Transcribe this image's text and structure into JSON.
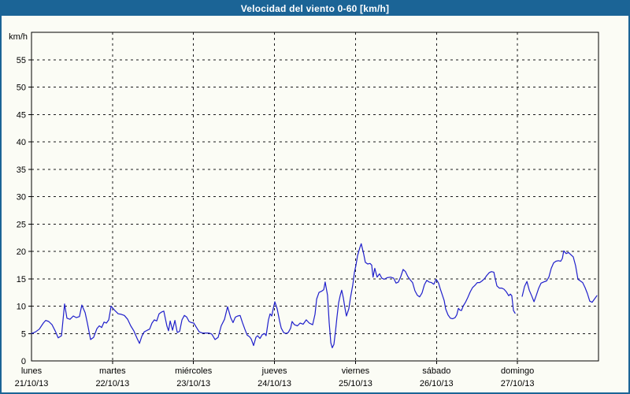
{
  "window": {
    "title": "Velocidad del viento 0-60 [km/h]"
  },
  "colors": {
    "header_bg": "#1b6496",
    "page_border": "#1b6496",
    "page_background": "#fbfcf5",
    "line": "#1f1fcb",
    "grid": "#1a1a1a",
    "axis": "#000000",
    "text": "#000000",
    "title_text": "#ffffff"
  },
  "chart_data": {
    "type": "line",
    "title": "Velocidad del viento 0-60 [km/h]",
    "ylabel": "km/h",
    "xlabel": "",
    "ylim": [
      0,
      60
    ],
    "xlim_hours": [
      0,
      168
    ],
    "grid": "dashed",
    "legend_position": "none",
    "y_axis": {
      "unit": "km/h",
      "tick_step": 5,
      "tick_labels": [
        0,
        5,
        10,
        15,
        20,
        25,
        30,
        35,
        40,
        45,
        50,
        55
      ]
    },
    "x_axis": {
      "hours_total": 168,
      "day_span_hours": 24,
      "days": [
        {
          "name": "lunes",
          "date": "21/10/13"
        },
        {
          "name": "martes",
          "date": "22/10/13"
        },
        {
          "name": "miércoles",
          "date": "23/10/13"
        },
        {
          "name": "jueves",
          "date": "24/10/13"
        },
        {
          "name": "viernes",
          "date": "25/10/13"
        },
        {
          "name": "sábado",
          "date": "26/10/13"
        },
        {
          "name": "domingo",
          "date": "27/10/13"
        }
      ]
    },
    "series": [
      {
        "name": "Velocidad del viento",
        "color": "#1f1fcb",
        "units": "km/h",
        "note": "x = hours since lunes 21/10/13 00:00; gap in data late Saturday night",
        "segments": [
          [
            [
              0,
              5.0
            ],
            [
              1.2,
              5.3
            ],
            [
              2.3,
              5.8
            ],
            [
              3.5,
              6.9
            ],
            [
              4.2,
              7.4
            ],
            [
              5.1,
              7.2
            ],
            [
              6.1,
              6.6
            ],
            [
              7.0,
              5.5
            ],
            [
              7.9,
              4.2
            ],
            [
              8.9,
              4.6
            ],
            [
              9.8,
              10.4
            ],
            [
              10.5,
              7.8
            ],
            [
              11.4,
              7.6
            ],
            [
              12.4,
              8.2
            ],
            [
              13.3,
              7.9
            ],
            [
              14.2,
              8.1
            ],
            [
              14.9,
              10.2
            ],
            [
              15.9,
              8.8
            ],
            [
              16.6,
              6.8
            ],
            [
              17.5,
              3.9
            ],
            [
              18.4,
              4.3
            ],
            [
              19.4,
              5.9
            ],
            [
              20.1,
              6.4
            ],
            [
              20.8,
              6.1
            ],
            [
              21.5,
              7.1
            ],
            [
              22.2,
              6.9
            ],
            [
              22.9,
              7.5
            ],
            [
              23.6,
              10.0
            ],
            [
              24.7,
              9.2
            ],
            [
              25.7,
              8.6
            ],
            [
              26.6,
              8.5
            ],
            [
              27.5,
              8.3
            ],
            [
              28.5,
              7.6
            ],
            [
              29.4,
              6.4
            ],
            [
              30.3,
              5.5
            ],
            [
              31.3,
              4.1
            ],
            [
              32.0,
              3.2
            ],
            [
              32.7,
              4.5
            ],
            [
              33.4,
              5.3
            ],
            [
              34.3,
              5.6
            ],
            [
              35.0,
              5.8
            ],
            [
              35.7,
              6.9
            ],
            [
              36.4,
              7.5
            ],
            [
              37.1,
              7.3
            ],
            [
              37.8,
              8.6
            ],
            [
              38.5,
              8.9
            ],
            [
              39.2,
              9.1
            ],
            [
              40.1,
              6.4
            ],
            [
              40.6,
              5.5
            ],
            [
              41.1,
              7.3
            ],
            [
              41.8,
              5.6
            ],
            [
              42.5,
              7.4
            ],
            [
              43.2,
              5.2
            ],
            [
              43.9,
              5.4
            ],
            [
              44.6,
              7.5
            ],
            [
              45.3,
              8.3
            ],
            [
              46.0,
              8.0
            ],
            [
              46.7,
              7.2
            ],
            [
              47.4,
              7.0
            ],
            [
              48.1,
              6.9
            ],
            [
              48.8,
              6.2
            ],
            [
              49.7,
              5.3
            ],
            [
              50.6,
              5.1
            ],
            [
              51.6,
              5.1
            ],
            [
              52.5,
              5.1
            ],
            [
              53.4,
              4.9
            ],
            [
              54.4,
              3.9
            ],
            [
              55.3,
              4.3
            ],
            [
              56.2,
              6.4
            ],
            [
              57.2,
              7.6
            ],
            [
              58.1,
              9.9
            ],
            [
              59.0,
              7.9
            ],
            [
              59.7,
              7.0
            ],
            [
              60.4,
              8.0
            ],
            [
              61.1,
              8.2
            ],
            [
              61.8,
              8.3
            ],
            [
              62.5,
              7.0
            ],
            [
              63.2,
              5.8
            ],
            [
              63.9,
              4.7
            ],
            [
              64.6,
              4.4
            ],
            [
              65.1,
              4.0
            ],
            [
              65.8,
              2.8
            ],
            [
              66.5,
              4.3
            ],
            [
              67.0,
              4.6
            ],
            [
              67.7,
              4.1
            ],
            [
              68.4,
              4.8
            ],
            [
              69.1,
              5.0
            ],
            [
              69.5,
              4.6
            ],
            [
              70.2,
              7.5
            ],
            [
              70.7,
              8.6
            ],
            [
              71.2,
              8.2
            ],
            [
              71.6,
              9.5
            ],
            [
              72.1,
              10.8
            ],
            [
              72.8,
              9.5
            ],
            [
              73.5,
              7.3
            ],
            [
              74.0,
              6.0
            ],
            [
              74.7,
              5.2
            ],
            [
              75.4,
              5.0
            ],
            [
              76.1,
              5.2
            ],
            [
              76.8,
              6.0
            ],
            [
              77.2,
              7.2
            ],
            [
              77.9,
              6.6
            ],
            [
              78.8,
              6.4
            ],
            [
              79.6,
              6.9
            ],
            [
              80.5,
              6.7
            ],
            [
              81.4,
              7.5
            ],
            [
              82.3,
              6.9
            ],
            [
              83.3,
              6.6
            ],
            [
              84.0,
              8.5
            ],
            [
              84.5,
              11.3
            ],
            [
              85.2,
              12.5
            ],
            [
              85.9,
              12.7
            ],
            [
              86.6,
              13.0
            ],
            [
              87.0,
              14.4
            ],
            [
              87.7,
              12.0
            ],
            [
              88.2,
              7.0
            ],
            [
              88.7,
              3.3
            ],
            [
              89.1,
              2.4
            ],
            [
              89.6,
              3.0
            ],
            [
              90.1,
              5.5
            ],
            [
              90.5,
              8.0
            ],
            [
              91.0,
              10.6
            ],
            [
              91.5,
              12.0
            ],
            [
              91.9,
              12.9
            ],
            [
              92.4,
              11.5
            ],
            [
              92.9,
              9.6
            ],
            [
              93.3,
              8.2
            ],
            [
              94.0,
              9.5
            ],
            [
              94.5,
              11.5
            ],
            [
              95.2,
              13.9
            ],
            [
              95.7,
              16.2
            ],
            [
              96.1,
              17.4
            ],
            [
              96.6,
              19.2
            ],
            [
              97.3,
              20.7
            ],
            [
              97.7,
              21.4
            ],
            [
              98.4,
              19.6
            ],
            [
              98.9,
              18.0
            ],
            [
              99.6,
              17.7
            ],
            [
              100.3,
              17.8
            ],
            [
              100.8,
              17.5
            ],
            [
              101.2,
              15.3
            ],
            [
              101.7,
              16.9
            ],
            [
              102.4,
              15.3
            ],
            [
              103.1,
              15.9
            ],
            [
              103.8,
              15.1
            ],
            [
              104.5,
              14.9
            ],
            [
              105.4,
              15.2
            ],
            [
              106.4,
              15.3
            ],
            [
              107.3,
              15.1
            ],
            [
              108.0,
              14.2
            ],
            [
              108.7,
              14.4
            ],
            [
              109.4,
              15.4
            ],
            [
              110.1,
              16.7
            ],
            [
              110.8,
              16.3
            ],
            [
              111.5,
              15.4
            ],
            [
              112.2,
              14.8
            ],
            [
              112.9,
              14.3
            ],
            [
              113.6,
              12.8
            ],
            [
              114.3,
              12.0
            ],
            [
              115.0,
              11.7
            ],
            [
              115.7,
              12.4
            ],
            [
              116.4,
              13.9
            ],
            [
              117.1,
              14.7
            ],
            [
              117.8,
              14.4
            ],
            [
              118.5,
              14.3
            ],
            [
              119.2,
              14.0
            ],
            [
              119.9,
              14.9
            ],
            [
              120.6,
              14.2
            ],
            [
              121.1,
              13.2
            ],
            [
              121.8,
              11.9
            ],
            [
              122.3,
              11.0
            ],
            [
              122.7,
              9.5
            ],
            [
              123.4,
              8.4
            ],
            [
              124.1,
              7.8
            ],
            [
              124.8,
              7.7
            ],
            [
              125.5,
              7.9
            ],
            [
              126.0,
              8.4
            ],
            [
              126.5,
              9.6
            ],
            [
              126.9,
              9.3
            ],
            [
              127.4,
              9.2
            ],
            [
              127.9,
              10.0
            ],
            [
              128.6,
              10.7
            ],
            [
              129.3,
              11.6
            ],
            [
              130.0,
              12.6
            ],
            [
              130.7,
              13.4
            ],
            [
              131.4,
              13.8
            ],
            [
              132.1,
              14.3
            ],
            [
              132.8,
              14.3
            ],
            [
              133.5,
              14.6
            ],
            [
              134.2,
              15.0
            ],
            [
              134.9,
              15.6
            ],
            [
              135.6,
              16.1
            ],
            [
              136.3,
              16.3
            ],
            [
              137.0,
              16.2
            ],
            [
              137.4,
              15.0
            ],
            [
              137.9,
              13.7
            ],
            [
              138.6,
              13.3
            ],
            [
              139.3,
              13.3
            ],
            [
              140.0,
              13.1
            ],
            [
              140.7,
              12.6
            ],
            [
              141.4,
              11.9
            ],
            [
              141.9,
              12.2
            ],
            [
              142.3,
              11.9
            ],
            [
              142.8,
              9.2
            ],
            [
              143.3,
              8.7
            ]
          ],
          [
            [
              145.4,
              11.8
            ],
            [
              146.1,
              13.6
            ],
            [
              146.8,
              14.5
            ],
            [
              147.5,
              12.9
            ],
            [
              148.2,
              11.9
            ],
            [
              148.9,
              10.8
            ],
            [
              149.6,
              12.0
            ],
            [
              150.3,
              13.3
            ],
            [
              151.0,
              14.2
            ],
            [
              151.7,
              14.4
            ],
            [
              152.6,
              14.6
            ],
            [
              153.3,
              15.3
            ],
            [
              154.0,
              16.9
            ],
            [
              154.7,
              17.9
            ],
            [
              155.4,
              18.2
            ],
            [
              156.1,
              18.3
            ],
            [
              156.8,
              18.2
            ],
            [
              157.3,
              18.7
            ],
            [
              157.7,
              20.1
            ],
            [
              158.4,
              19.6
            ],
            [
              159.1,
              19.8
            ],
            [
              159.8,
              19.4
            ],
            [
              160.5,
              19.0
            ],
            [
              161.2,
              17.4
            ],
            [
              161.9,
              14.9
            ],
            [
              162.6,
              14.6
            ],
            [
              163.3,
              14.3
            ],
            [
              164.0,
              13.4
            ],
            [
              164.7,
              12.3
            ],
            [
              165.4,
              10.9
            ],
            [
              166.1,
              10.7
            ],
            [
              166.8,
              11.3
            ],
            [
              167.5,
              11.9
            ]
          ]
        ]
      }
    ]
  }
}
